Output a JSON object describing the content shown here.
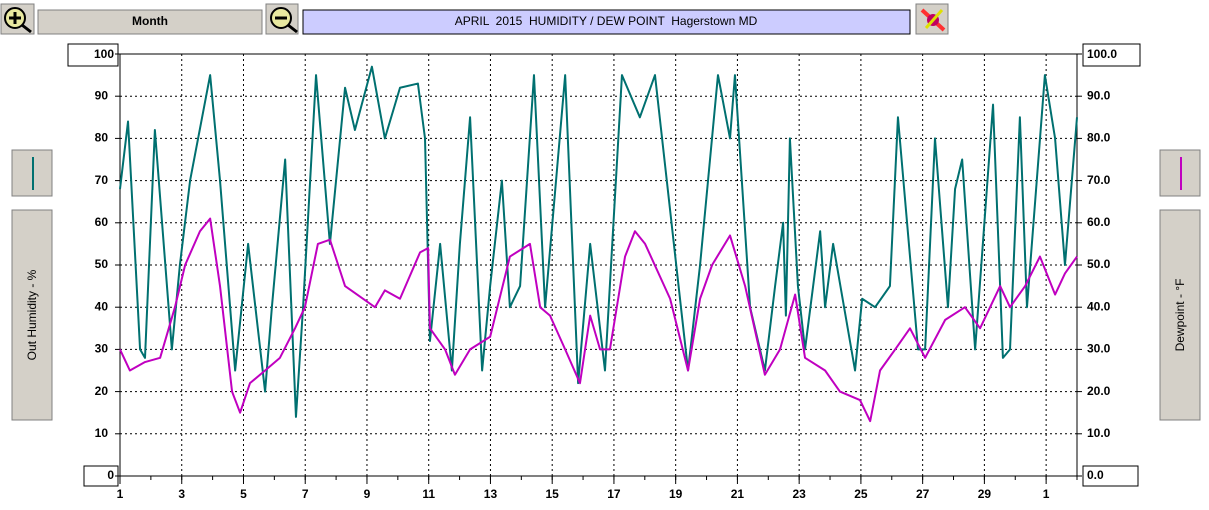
{
  "toolbar": {
    "period_button": "Month"
  },
  "chart_data": {
    "type": "line",
    "title": "APRIL  2015  HUMIDITY / DEW POINT  Hagerstown MD",
    "y_label": "Out Humidity - %",
    "y2_label": "Dewpoint - °F",
    "xlim": [
      1,
      32
    ],
    "xticks": [
      1,
      3,
      5,
      7,
      9,
      11,
      13,
      15,
      17,
      19,
      21,
      23,
      25,
      27,
      29,
      {
        "value": 31,
        "label": "1"
      }
    ],
    "ylim": [
      0,
      100
    ],
    "yticks": [
      0,
      10,
      20,
      30,
      40,
      50,
      60,
      70,
      80,
      90,
      100
    ],
    "y2lim": [
      0,
      100
    ],
    "y2ticks": [
      {
        "value": 0,
        "label": "0.0"
      },
      {
        "value": 10,
        "label": "10.0"
      },
      {
        "value": 20,
        "label": "20.0"
      },
      {
        "value": 30,
        "label": "30.0"
      },
      {
        "value": 40,
        "label": "40.0"
      },
      {
        "value": 50,
        "label": "50.0"
      },
      {
        "value": 60,
        "label": "60.0"
      },
      {
        "value": 70,
        "label": "70.0"
      },
      {
        "value": 80,
        "label": "80.0"
      },
      {
        "value": 90,
        "label": "90.0"
      },
      {
        "value": 100,
        "label": "100.0"
      }
    ],
    "grid": true,
    "series": [
      {
        "color": "#007070",
        "x": [
          1.0,
          1.26,
          1.65,
          1.81,
          2.13,
          2.68,
          2.94,
          3.27,
          3.92,
          4.24,
          4.73,
          5.15,
          5.7,
          5.92,
          6.35,
          6.7,
          6.93,
          7.35,
          7.8,
          8.29,
          8.61,
          9.16,
          9.58,
          10.07,
          10.65,
          10.88,
          11.04,
          11.37,
          11.75,
          12.01,
          12.34,
          12.73,
          12.99,
          13.37,
          13.63,
          13.96,
          14.41,
          14.77,
          15.42,
          15.84,
          16.23,
          16.71,
          17.26,
          17.84,
          18.33,
          19.4,
          19.79,
          20.37,
          20.76,
          20.92,
          21.41,
          21.89,
          22.22,
          22.48,
          22.57,
          22.7,
          22.96,
          23.19,
          23.68,
          23.84,
          24.1,
          24.81,
          25.04,
          25.46,
          25.94,
          26.2,
          26.85,
          27.08,
          27.4,
          27.82,
          28.05,
          28.28,
          28.7,
          29.28,
          29.6,
          29.83,
          30.15,
          30.38,
          30.96,
          31.29,
          31.61,
          32.0
        ],
        "values": [
          68,
          84,
          30,
          28,
          82,
          30,
          50,
          70,
          95,
          70,
          25,
          55,
          20,
          40,
          75,
          14,
          40,
          95,
          55,
          92,
          82,
          97,
          80,
          92,
          93,
          80,
          32,
          55,
          25,
          55,
          85,
          25,
          45,
          70,
          40,
          45,
          95,
          40,
          95,
          22,
          55,
          25,
          95,
          85,
          95,
          25,
          50,
          95,
          80,
          95,
          40,
          25,
          45,
          60,
          38,
          80,
          45,
          30,
          58,
          40,
          55,
          25,
          42,
          40,
          45,
          85,
          30,
          30,
          80,
          40,
          68,
          75,
          30,
          88,
          28,
          30,
          85,
          40,
          95,
          80,
          50,
          85
        ]
      },
      {
        "color": "#c000c0",
        "axis": "y2",
        "x": [
          1.0,
          1.32,
          1.81,
          2.3,
          2.78,
          3.11,
          3.59,
          3.92,
          4.24,
          4.63,
          4.89,
          5.21,
          5.7,
          6.18,
          6.67,
          6.99,
          7.41,
          7.8,
          8.29,
          9.26,
          9.58,
          10.07,
          10.72,
          10.98,
          11.04,
          11.53,
          11.85,
          12.34,
          12.99,
          13.63,
          14.28,
          14.61,
          14.93,
          15.42,
          15.9,
          16.23,
          16.55,
          16.87,
          17.36,
          17.68,
          18.01,
          18.82,
          19.4,
          19.79,
          20.18,
          20.76,
          21.25,
          21.89,
          22.38,
          22.87,
          23.19,
          23.84,
          24.32,
          24.97,
          25.3,
          25.62,
          26.11,
          26.59,
          27.08,
          27.73,
          28.37,
          28.86,
          29.51,
          29.83,
          30.32,
          30.8,
          31.29,
          31.61,
          32.0
        ],
        "values": [
          30,
          25,
          27,
          28,
          40,
          50,
          58,
          61,
          45,
          20,
          15,
          22,
          25,
          28,
          35,
          40,
          55,
          56,
          45,
          40,
          44,
          42,
          53,
          54,
          35,
          30,
          24,
          30,
          33,
          52,
          55,
          40,
          38,
          30,
          22,
          38,
          30,
          30,
          52,
          58,
          55,
          42,
          25,
          42,
          50,
          57,
          45,
          24,
          30,
          43,
          28,
          25,
          20,
          18,
          13,
          25,
          30,
          35,
          28,
          37,
          40,
          35,
          45,
          40,
          45,
          52,
          43,
          48,
          52
        ]
      }
    ]
  }
}
